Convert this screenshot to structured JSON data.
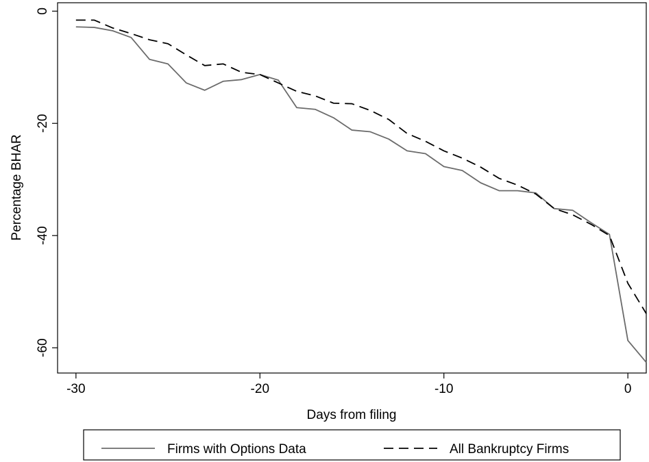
{
  "chart_data": {
    "type": "line",
    "title": "",
    "xlabel": "Days from filing",
    "ylabel": "Percentage BHAR",
    "xlim": [
      -31,
      1
    ],
    "ylim": [
      -64.5,
      1.5
    ],
    "xticks": [
      -30,
      -20,
      -10,
      0
    ],
    "yticks": [
      0,
      -20,
      -40,
      -60
    ],
    "x_tick_labels": [
      "-30",
      "-20",
      "-10",
      "0"
    ],
    "y_tick_labels": [
      "0",
      "-20",
      "-40",
      "-60"
    ],
    "grid": false,
    "legend_position": "bottom",
    "x": [
      -30,
      -29,
      -28,
      -27,
      -26,
      -25,
      -24,
      -23,
      -22,
      -21,
      -20,
      -19,
      -18,
      -17,
      -16,
      -15,
      -14,
      -13,
      -12,
      -11,
      -10,
      -9,
      -8,
      -7,
      -6,
      -5,
      -4,
      -3,
      -2,
      -1,
      0,
      1
    ],
    "series": [
      {
        "name": "Firms with Options Data",
        "color": "#6b6b6b",
        "dash": "solid",
        "values": [
          -2.8,
          -2.9,
          -3.5,
          -4.7,
          -8.6,
          -9.4,
          -12.8,
          -14.1,
          -12.5,
          -12.2,
          -11.3,
          -12.3,
          -17.2,
          -17.5,
          -19.0,
          -21.2,
          -21.5,
          -22.8,
          -24.9,
          -25.4,
          -27.7,
          -28.4,
          -30.6,
          -32.0,
          -32.0,
          -32.4,
          -35.2,
          -35.5,
          -37.7,
          -39.8,
          -58.7,
          -62.6
        ]
      },
      {
        "name": "All Bankruptcy Firms",
        "color": "#000000",
        "dash": "dashed",
        "values": [
          -1.6,
          -1.6,
          -3.0,
          -4.0,
          -5.1,
          -5.8,
          -7.8,
          -9.7,
          -9.4,
          -10.9,
          -11.3,
          -12.8,
          -14.3,
          -15.1,
          -16.4,
          -16.5,
          -17.7,
          -19.3,
          -21.8,
          -23.2,
          -24.9,
          -26.2,
          -27.8,
          -29.8,
          -31.0,
          -32.6,
          -35.2,
          -36.3,
          -38.0,
          -40.0,
          -48.5,
          -53.9
        ]
      }
    ]
  }
}
